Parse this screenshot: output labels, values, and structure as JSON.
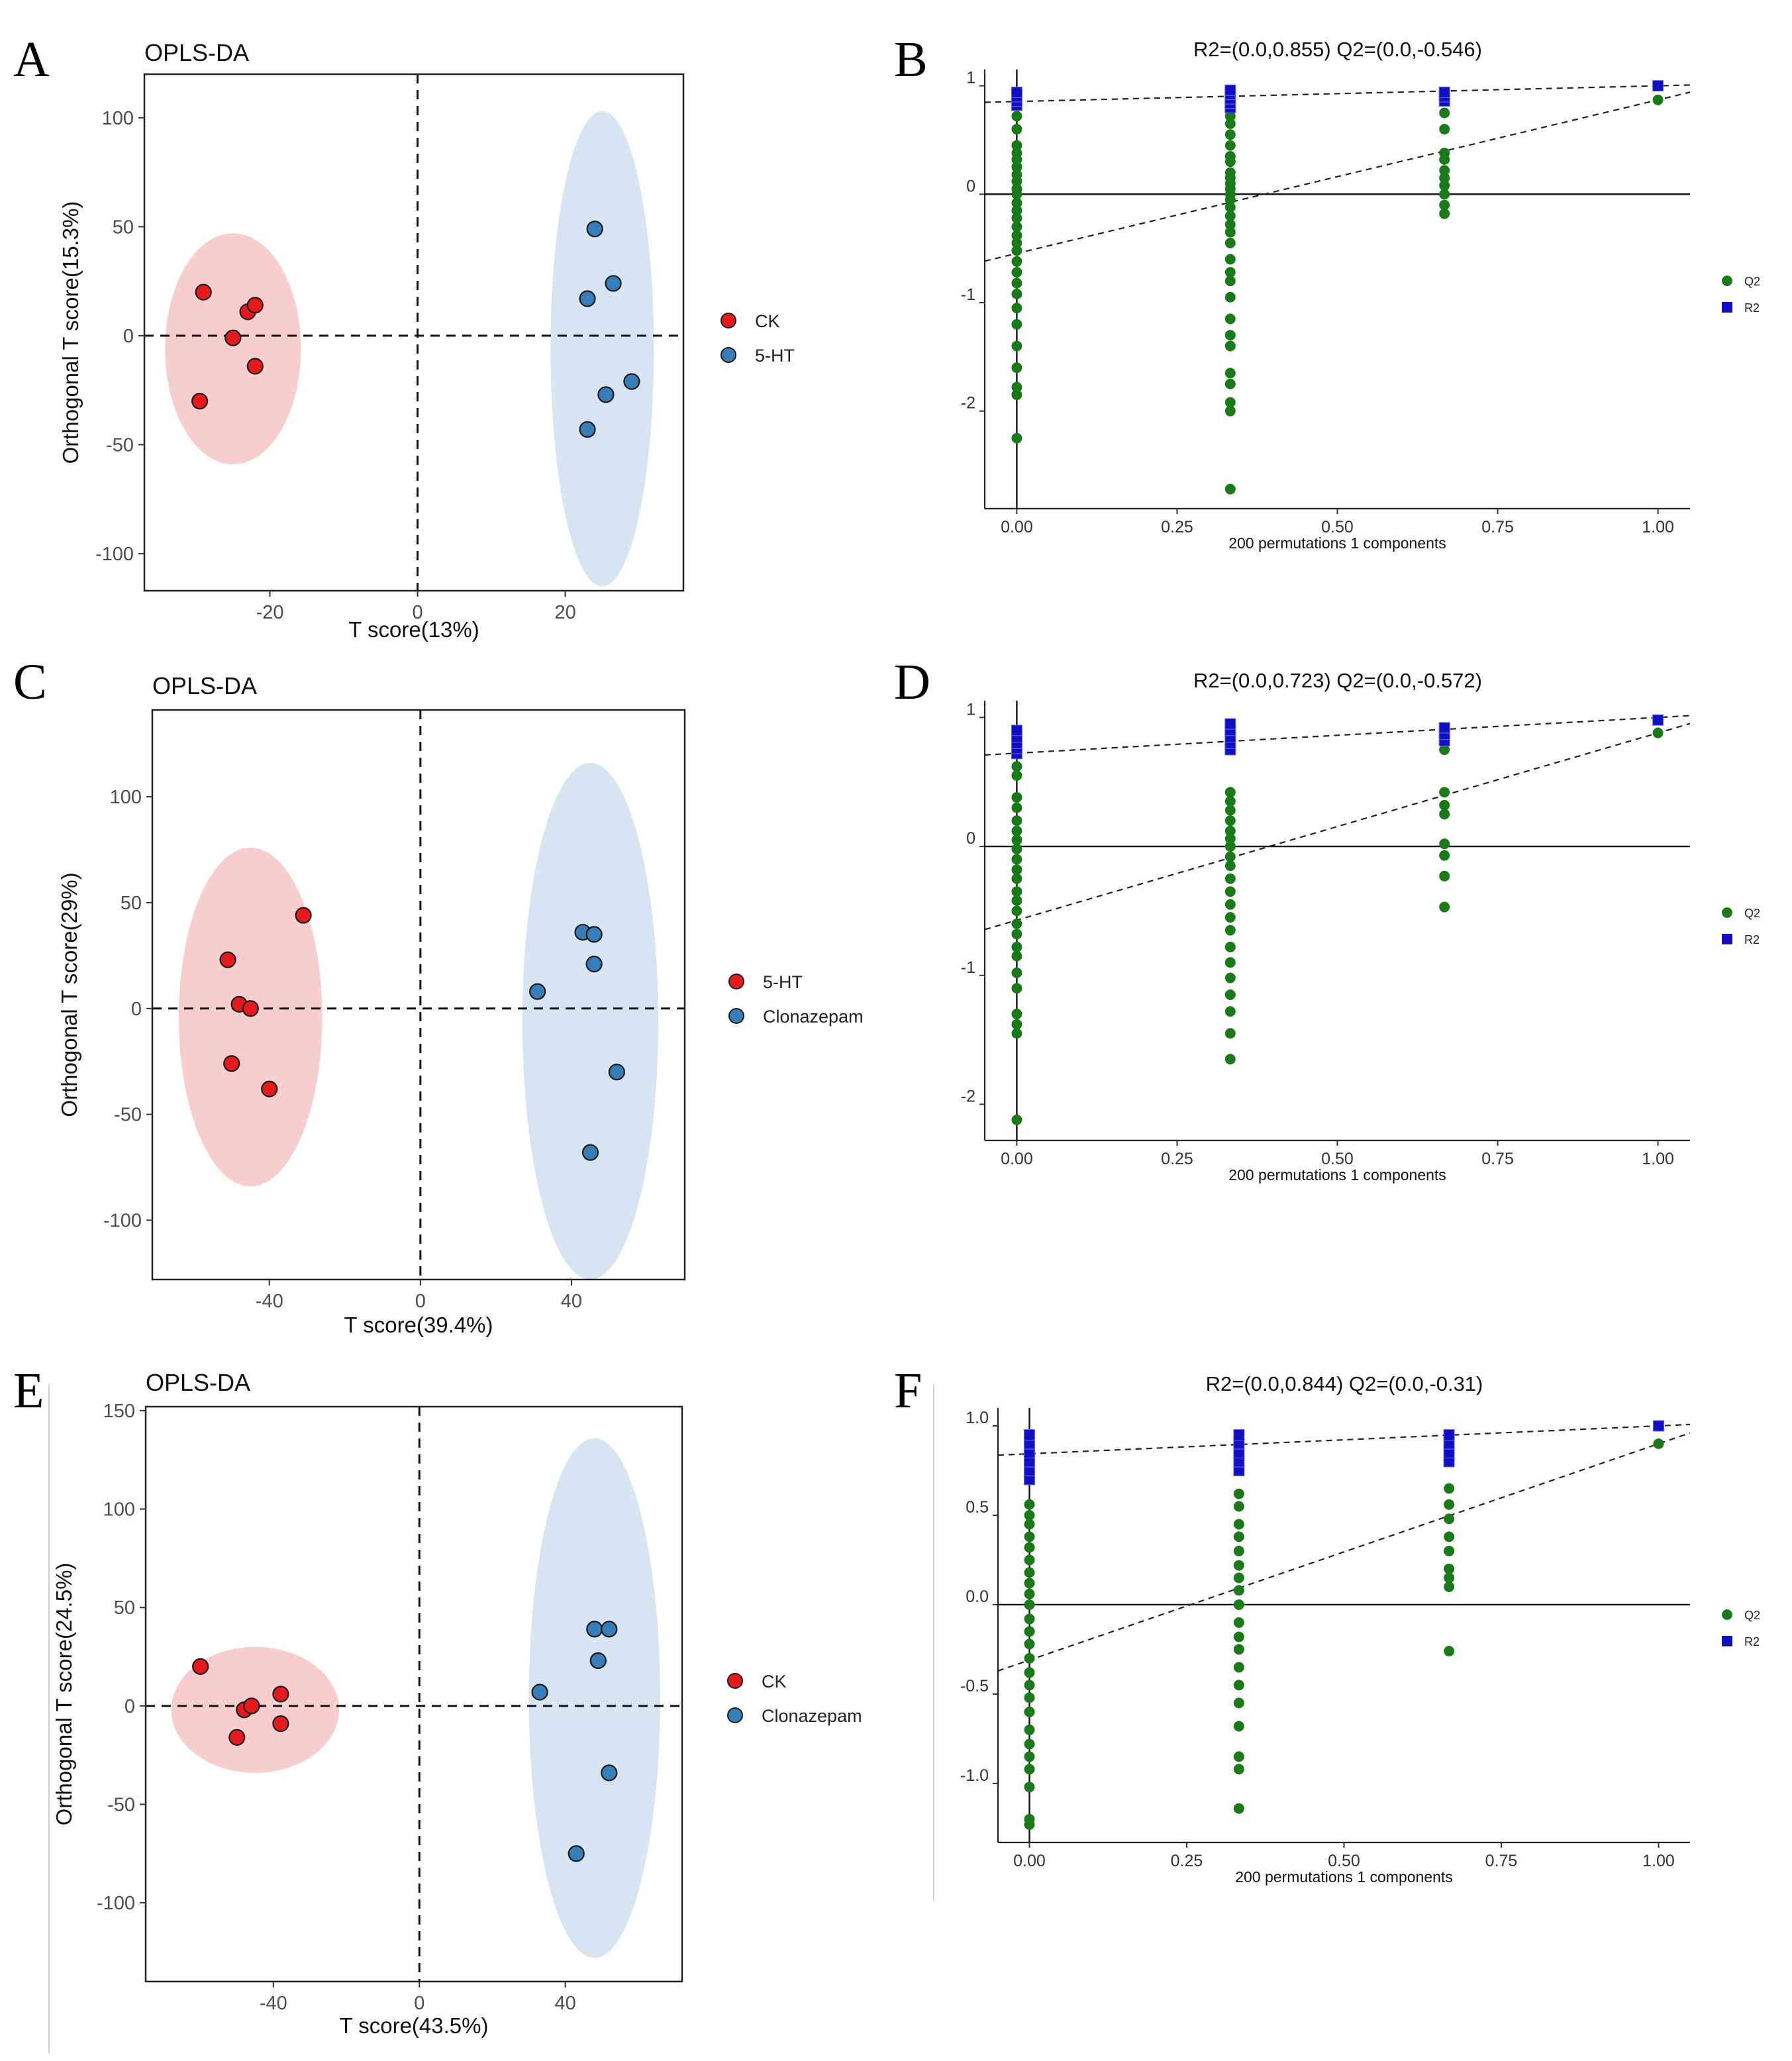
{
  "figure": {
    "panels": [
      {
        "letter": "A"
      },
      {
        "letter": "B"
      },
      {
        "letter": "C"
      },
      {
        "letter": "D"
      },
      {
        "letter": "E"
      },
      {
        "letter": "F"
      }
    ]
  },
  "colors": {
    "group1": "#e41a1c",
    "group2": "#377eb8",
    "ellipse1": "#f7c4c4",
    "ellipse2": "#cfe0ef",
    "q2": "#1a7a1a",
    "r2": "#1010c0"
  },
  "chart_data": [
    {
      "panel": "A",
      "type": "scatter",
      "title": "OPLS-DA",
      "xlabel": "T score(13%)",
      "ylabel": "Orthogonal T score(15.3%)",
      "xlim": [
        -37,
        36
      ],
      "ylim": [
        -117,
        120
      ],
      "xticks": [
        -20,
        0,
        20
      ],
      "yticks": [
        -100,
        -50,
        0,
        50,
        100
      ],
      "series": [
        {
          "name": "CK",
          "color": "#e41a1c",
          "x": [
            -29,
            -29.5,
            -23,
            -22,
            -25,
            -22
          ],
          "y": [
            20,
            -30,
            11,
            14,
            -1,
            -14
          ],
          "ellipse": {
            "cx": -25,
            "cy": -6,
            "rx": 9.2,
            "ry": 53
          }
        },
        {
          "name": "5-HT",
          "color": "#377eb8",
          "x": [
            24,
            26.5,
            23,
            29,
            25.5,
            23
          ],
          "y": [
            49,
            24,
            17,
            -21,
            -27,
            -43
          ],
          "ellipse": {
            "cx": 25,
            "cy": -6,
            "rx": 7,
            "ry": 109
          }
        }
      ]
    },
    {
      "panel": "B",
      "type": "scatter",
      "stat_text": "R2=(0.0,0.855)   Q2=(0.0,-0.546)",
      "xlabel": "200 permutations 1 components",
      "xlim": [
        -0.05,
        1.05
      ],
      "ylim": [
        -2.9,
        1.15
      ],
      "xticks": [
        "0.00",
        "0.25",
        "0.50",
        "0.75",
        "1.00"
      ],
      "yticks": [
        "1",
        "0",
        "-1",
        "-2"
      ],
      "ytick_values": [
        1,
        0,
        -1,
        -2
      ],
      "legend": [
        "Q2",
        "R2"
      ],
      "r2_line": {
        "intercept": 0.855,
        "end": 1.0
      },
      "q2_line": {
        "intercept": -0.546,
        "end": 0.87
      },
      "q2_points": [
        {
          "x": 0,
          "y": [
            -2.25,
            -1.85,
            -1.78,
            -1.6,
            -1.4,
            -1.2,
            -1.05,
            -0.92,
            -0.82,
            -0.72,
            -0.62,
            -0.52,
            -0.45,
            -0.38,
            -0.3,
            -0.22,
            -0.15,
            -0.08,
            0,
            0.05,
            0.12,
            0.18,
            0.25,
            0.32,
            0.38,
            0.45,
            0.6,
            0.72
          ]
        },
        {
          "x": 0.333,
          "y": [
            -2.72,
            -2.0,
            -1.92,
            -1.75,
            -1.65,
            -1.4,
            -1.3,
            -1.15,
            -0.95,
            -0.8,
            -0.72,
            -0.6,
            -0.45,
            -0.35,
            -0.28,
            -0.2,
            -0.12,
            -0.05,
            0,
            0.05,
            0.1,
            0.15,
            0.2,
            0.3,
            0.35,
            0.45,
            0.55,
            0.65,
            0.72
          ]
        },
        {
          "x": 0.667,
          "y": [
            -0.18,
            -0.1,
            0,
            0.08,
            0.15,
            0.22,
            0.32,
            0.38,
            0.6,
            0.75
          ]
        },
        {
          "x": 1.0,
          "y": [
            0.87
          ]
        }
      ],
      "r2_points": [
        {
          "x": 0,
          "y": [
            0.82,
            0.86,
            0.9,
            0.94
          ]
        },
        {
          "x": 0.333,
          "y": [
            0.8,
            0.84,
            0.88,
            0.92,
            0.96
          ]
        },
        {
          "x": 0.667,
          "y": [
            0.86,
            0.9,
            0.94
          ]
        },
        {
          "x": 1.0,
          "y": [
            1.0
          ]
        }
      ]
    },
    {
      "panel": "C",
      "type": "scatter",
      "title": "OPLS-DA",
      "xlabel": "T score(39.4%)",
      "ylabel": "Orthogonal T score(29%)",
      "xlim": [
        -71,
        70
      ],
      "ylim": [
        -128,
        141
      ],
      "xticks": [
        -40,
        0,
        40
      ],
      "yticks": [
        -100,
        -50,
        0,
        50,
        100
      ],
      "series": [
        {
          "name": "5-HT",
          "color": "#e41a1c",
          "x": [
            -31,
            -51,
            -48,
            -45,
            -50,
            -40
          ],
          "y": [
            44,
            23,
            2,
            0,
            -26,
            -38
          ],
          "ellipse": {
            "cx": -45,
            "cy": -4,
            "rx": 19,
            "ry": 80
          }
        },
        {
          "name": "Clonazepam",
          "color": "#377eb8",
          "x": [
            43,
            46,
            46,
            31,
            52,
            45
          ],
          "y": [
            36,
            35,
            21,
            8,
            -30,
            -68
          ],
          "ellipse": {
            "cx": 45,
            "cy": -6,
            "rx": 18,
            "ry": 122
          }
        }
      ]
    },
    {
      "panel": "D",
      "type": "scatter",
      "stat_text": "R2=(0.0,0.723)   Q2=(0.0,-0.572)",
      "xlabel": "200 permutations 1 components",
      "xlim": [
        -0.05,
        1.05
      ],
      "ylim": [
        -2.28,
        1.13
      ],
      "xticks": [
        "0.00",
        "0.25",
        "0.50",
        "0.75",
        "1.00"
      ],
      "yticks": [
        "1",
        "0",
        "-1",
        "-2"
      ],
      "ytick_values": [
        1,
        0,
        -1,
        -2
      ],
      "legend": [
        "Q2",
        "R2"
      ],
      "r2_line": {
        "intercept": 0.723,
        "end": 1.0
      },
      "q2_line": {
        "intercept": -0.572,
        "end": 0.88
      },
      "q2_points": [
        {
          "x": 0,
          "y": [
            -2.12,
            -1.45,
            -1.38,
            -1.3,
            -1.1,
            -0.98,
            -0.85,
            -0.78,
            -0.68,
            -0.6,
            -0.5,
            -0.42,
            -0.35,
            -0.25,
            -0.18,
            -0.1,
            -0.02,
            0.05,
            0.12,
            0.2,
            0.3,
            0.38,
            0.55,
            0.62
          ]
        },
        {
          "x": 0.333,
          "y": [
            -1.65,
            -1.45,
            -1.28,
            -1.15,
            -1.02,
            -0.9,
            -0.78,
            -0.65,
            -0.55,
            -0.45,
            -0.35,
            -0.25,
            -0.15,
            -0.08,
            0,
            0.06,
            0.12,
            0.2,
            0.28,
            0.35,
            0.42
          ]
        },
        {
          "x": 0.667,
          "y": [
            -0.47,
            -0.23,
            -0.07,
            0.02,
            0.25,
            0.32,
            0.42,
            0.75,
            0.8
          ]
        },
        {
          "x": 1.0,
          "y": [
            0.88
          ]
        }
      ],
      "r2_points": [
        {
          "x": 0,
          "y": [
            0.72,
            0.76,
            0.8,
            0.85,
            0.9
          ]
        },
        {
          "x": 0.333,
          "y": [
            0.75,
            0.8,
            0.85,
            0.9,
            0.95
          ]
        },
        {
          "x": 0.667,
          "y": [
            0.82,
            0.87,
            0.92
          ]
        },
        {
          "x": 1.0,
          "y": [
            0.98
          ]
        }
      ]
    },
    {
      "panel": "E",
      "type": "scatter",
      "title": "OPLS-DA",
      "xlabel": "T score(43.5%)",
      "ylabel": "Orthogonal T score(24.5%)",
      "xlim": [
        -75,
        72
      ],
      "ylim": [
        -140,
        152
      ],
      "xticks": [
        -40,
        0,
        40
      ],
      "yticks": [
        -100,
        -50,
        0,
        50,
        100,
        150
      ],
      "series": [
        {
          "name": "CK",
          "color": "#e41a1c",
          "x": [
            -60,
            -38,
            -48,
            -46,
            -38,
            -50
          ],
          "y": [
            20,
            6,
            -2,
            0,
            -9,
            -16
          ],
          "ellipse": {
            "cx": -45,
            "cy": -2,
            "rx": 23,
            "ry": 32
          }
        },
        {
          "name": "Clonazepam",
          "color": "#377eb8",
          "x": [
            48,
            52,
            49,
            33,
            52,
            43
          ],
          "y": [
            39,
            39,
            23,
            7,
            -34,
            -75
          ],
          "ellipse": {
            "cx": 48,
            "cy": 4,
            "rx": 18,
            "ry": 132
          }
        }
      ]
    },
    {
      "panel": "F",
      "type": "scatter",
      "stat_text": "R2=(0.0,0.844)   Q2=(0.0,-0.31)",
      "xlabel": "200 permutations 1 components",
      "xlim": [
        -0.05,
        1.05
      ],
      "ylim": [
        -1.33,
        1.1
      ],
      "xticks": [
        "0.00",
        "0.25",
        "0.50",
        "0.75",
        "1.00"
      ],
      "yticks": [
        "1.0",
        "0.5",
        "0.0",
        "-0.5",
        "-1.0"
      ],
      "ytick_values": [
        1,
        0.5,
        0,
        -0.5,
        -1
      ],
      "legend": [
        "Q2",
        "R2"
      ],
      "r2_line": {
        "intercept": 0.844,
        "end": 1.0
      },
      "q2_line": {
        "intercept": -0.31,
        "end": 0.9
      },
      "q2_points": [
        {
          "x": 0,
          "y": [
            -1.23,
            -1.2,
            -1.02,
            -0.92,
            -0.85,
            -0.78,
            -0.7,
            -0.6,
            -0.52,
            -0.45,
            -0.38,
            -0.3,
            -0.22,
            -0.15,
            -0.08,
            0,
            0.06,
            0.12,
            0.18,
            0.25,
            0.32,
            0.38,
            0.45,
            0.5,
            0.56
          ]
        },
        {
          "x": 0.333,
          "y": [
            -1.14,
            -0.92,
            -0.85,
            -0.68,
            -0.55,
            -0.45,
            -0.35,
            -0.25,
            -0.18,
            -0.1,
            0,
            0.08,
            0.15,
            0.22,
            0.3,
            0.38,
            0.45,
            0.55,
            0.62
          ]
        },
        {
          "x": 0.667,
          "y": [
            -0.26,
            0.1,
            0.15,
            0.2,
            0.3,
            0.38,
            0.48,
            0.56,
            0.65
          ]
        },
        {
          "x": 1.0,
          "y": [
            0.9
          ]
        }
      ],
      "r2_points": [
        {
          "x": 0,
          "y": [
            0.7,
            0.75,
            0.8,
            0.85,
            0.9,
            0.95
          ]
        },
        {
          "x": 0.333,
          "y": [
            0.75,
            0.8,
            0.85,
            0.9,
            0.95
          ]
        },
        {
          "x": 0.667,
          "y": [
            0.8,
            0.85,
            0.9,
            0.95
          ]
        },
        {
          "x": 1.0,
          "y": [
            1.0
          ]
        }
      ]
    }
  ]
}
